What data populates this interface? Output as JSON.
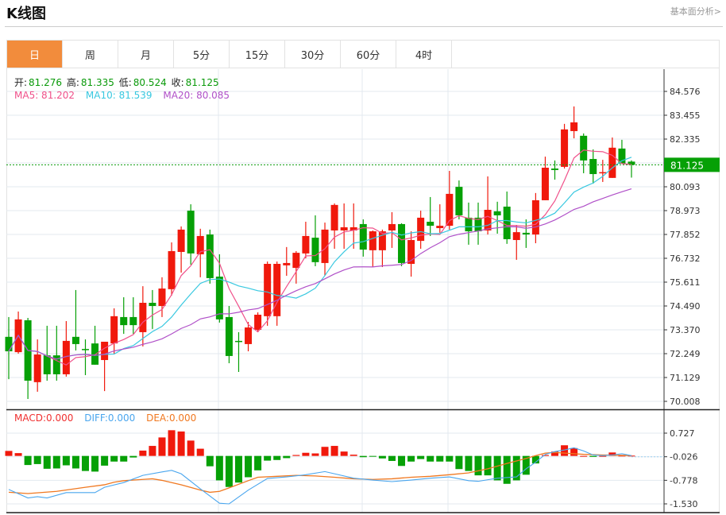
{
  "header": {
    "title": "K线图",
    "more_link": "基本面分析>"
  },
  "tabs": [
    {
      "label": "日",
      "active": true
    },
    {
      "label": "周"
    },
    {
      "label": "月"
    },
    {
      "label": "5分"
    },
    {
      "label": "15分"
    },
    {
      "label": "30分"
    },
    {
      "label": "60分"
    },
    {
      "label": "4时"
    }
  ],
  "ohlc": {
    "open_label": "开:",
    "open": "81.276",
    "high_label": "高:",
    "high": "81.335",
    "low_label": "低:",
    "low": "80.524",
    "close_label": "收:",
    "close": "81.125"
  },
  "ma": {
    "ma5": "MA5: 81.202",
    "ma10": "MA10: 81.539",
    "ma20": "MA20: 80.085"
  },
  "macd_legend": {
    "macd": "MACD:0.000",
    "diff": "DIFF:0.000",
    "dea": "DEA:0.000"
  },
  "colors": {
    "up": "#f0190c",
    "down": "#06a006",
    "ma5": "#f0508a",
    "ma10": "#38c8e0",
    "ma20": "#b050c8",
    "macd": "#f03030",
    "diff": "#4aa6ee",
    "dea": "#f07820",
    "accent": "#f28c3c"
  },
  "chart_data": {
    "type": "candlestick",
    "current_price": "81.125",
    "price_ticks": [
      "84.576",
      "83.455",
      "82.335",
      "81.214",
      "80.093",
      "78.973",
      "77.852",
      "76.732",
      "75.611",
      "74.490",
      "73.370",
      "72.249",
      "71.129",
      "70.008"
    ],
    "ylim": [
      70.008,
      84.576
    ],
    "macd_ticks": [
      "0.727",
      "-0.026",
      "-0.778",
      "-1.530"
    ],
    "macd_ylim": [
      -1.53,
      0.727
    ],
    "candles_ochl": [
      [
        73.04,
        72.36,
        73.97,
        71.05
      ],
      [
        72.32,
        73.86,
        74.23,
        72.25
      ],
      [
        73.82,
        70.98,
        73.93,
        70.12
      ],
      [
        70.91,
        72.21,
        72.92,
        70.46
      ],
      [
        72.17,
        71.28,
        73.56,
        70.98
      ],
      [
        72.17,
        71.28,
        73.56,
        70.98
      ],
      [
        71.28,
        72.85,
        73.78,
        71.17
      ],
      [
        73.04,
        72.7,
        75.24,
        72.4
      ],
      [
        72.47,
        72.44,
        72.92,
        71.24
      ],
      [
        72.73,
        71.73,
        73.56,
        71.73
      ],
      [
        71.95,
        72.81,
        72.81,
        70.49
      ],
      [
        72.73,
        74.01,
        74.38,
        72.25
      ],
      [
        73.97,
        73.59,
        74.9,
        73.18
      ],
      [
        73.97,
        73.59,
        74.9,
        73.18
      ],
      [
        73.26,
        74.64,
        75.42,
        72.59
      ],
      [
        74.64,
        74.49,
        75.24,
        73.41
      ],
      [
        74.49,
        75.31,
        75.84,
        73.97
      ],
      [
        75.28,
        77.07,
        77.48,
        74.98
      ],
      [
        77.03,
        78.08,
        78.23,
        76.06
      ],
      [
        78.97,
        76.96,
        79.27,
        76.43
      ],
      [
        76.92,
        77.78,
        78.12,
        75.84
      ],
      [
        77.85,
        75.8,
        78.08,
        75.54
      ],
      [
        75.87,
        73.86,
        76.92,
        73.71
      ],
      [
        73.97,
        72.14,
        74.49,
        71.8
      ],
      [
        72.85,
        72.81,
        73.26,
        71.39
      ],
      [
        72.7,
        73.48,
        73.74,
        72.36
      ],
      [
        73.37,
        74.08,
        74.19,
        73.26
      ],
      [
        74.01,
        76.47,
        76.58,
        73.56
      ],
      [
        74.01,
        76.47,
        76.58,
        73.56
      ],
      [
        76.4,
        76.51,
        77.26,
        75.91
      ],
      [
        76.28,
        76.99,
        77.07,
        75.54
      ],
      [
        76.96,
        77.78,
        78.45,
        76.73
      ],
      [
        77.7,
        76.55,
        78.75,
        76.36
      ],
      [
        76.51,
        78.08,
        78.41,
        75.91
      ],
      [
        78.04,
        79.24,
        79.31,
        77.18
      ],
      [
        78.04,
        78.19,
        79.31,
        77.18
      ],
      [
        78.04,
        78.19,
        79.31,
        77.18
      ],
      [
        78.34,
        77.14,
        78.56,
        76.81
      ],
      [
        77.11,
        78.0,
        78.04,
        76.32
      ],
      [
        77.11,
        78.0,
        78.08,
        76.32
      ],
      [
        78.04,
        78.34,
        78.9,
        77.22
      ],
      [
        78.34,
        76.51,
        78.38,
        76.36
      ],
      [
        76.47,
        77.59,
        78.0,
        75.87
      ],
      [
        77.55,
        78.64,
        78.97,
        77.18
      ],
      [
        78.45,
        78.26,
        79.61,
        77.78
      ],
      [
        78.15,
        78.26,
        79.27,
        77.93
      ],
      [
        78.26,
        79.76,
        80.84,
        78.08
      ],
      [
        80.09,
        78.75,
        80.39,
        78.56
      ],
      [
        78.64,
        78.0,
        79.35,
        77.37
      ],
      [
        78.64,
        78.0,
        79.35,
        77.37
      ],
      [
        78.04,
        79.01,
        80.58,
        77.85
      ],
      [
        78.94,
        78.75,
        79.39,
        77.89
      ],
      [
        79.16,
        77.63,
        79.87,
        77.41
      ],
      [
        77.59,
        77.96,
        78.3,
        76.66
      ],
      [
        77.93,
        77.85,
        78.56,
        77.22
      ],
      [
        77.85,
        79.46,
        79.8,
        77.44
      ],
      [
        79.46,
        80.99,
        81.51,
        79.46
      ],
      [
        80.95,
        80.88,
        81.33,
        80.43
      ],
      [
        81.03,
        82.79,
        83.05,
        80.95
      ],
      [
        82.71,
        83.12,
        83.87,
        82.37
      ],
      [
        82.49,
        81.33,
        82.6,
        80.73
      ],
      [
        81.4,
        80.69,
        81.85,
        80.24
      ],
      [
        80.77,
        80.78,
        81.36,
        80.32
      ],
      [
        80.51,
        81.93,
        82.41,
        80.51
      ],
      [
        81.89,
        81.18,
        82.3,
        81.18
      ],
      [
        81.276,
        81.125,
        81.335,
        80.524
      ]
    ],
    "macd_hist": [
      0.16,
      0.09,
      -0.29,
      -0.26,
      -0.41,
      -0.4,
      -0.3,
      -0.4,
      -0.48,
      -0.5,
      -0.31,
      -0.18,
      -0.18,
      -0.05,
      0.17,
      0.32,
      0.59,
      0.82,
      0.78,
      0.49,
      0.23,
      -0.33,
      -0.78,
      -0.99,
      -0.85,
      -0.68,
      -0.46,
      -0.15,
      -0.13,
      -0.07,
      0.03,
      0.1,
      0.08,
      0.29,
      0.32,
      0.14,
      0.04,
      -0.04,
      -0.02,
      -0.08,
      -0.16,
      -0.32,
      -0.18,
      -0.1,
      -0.18,
      -0.18,
      -0.18,
      -0.42,
      -0.48,
      -0.62,
      -0.62,
      -0.78,
      -0.89,
      -0.78,
      -0.6,
      -0.24,
      0.03,
      0.14,
      0.34,
      0.25,
      0.0,
      -0.03,
      0.0,
      0.11,
      0.01,
      0.01
    ],
    "diff_points": [
      [
        0,
        -1.07
      ],
      [
        2,
        -1.34
      ],
      [
        3,
        -1.3
      ],
      [
        4,
        -1.34
      ],
      [
        6,
        -1.17
      ],
      [
        9,
        -1.17
      ],
      [
        10,
        -1.0
      ],
      [
        12,
        -0.85
      ],
      [
        14,
        -0.62
      ],
      [
        16,
        -0.51
      ],
      [
        17,
        -0.46
      ],
      [
        18,
        -0.57
      ],
      [
        20,
        -1.05
      ],
      [
        22,
        -1.51
      ],
      [
        23,
        -1.53
      ],
      [
        25,
        -1.09
      ],
      [
        27,
        -0.72
      ],
      [
        29,
        -0.67
      ],
      [
        31,
        -0.6
      ],
      [
        33,
        -0.5
      ],
      [
        34,
        -0.57
      ],
      [
        36,
        -0.71
      ],
      [
        38,
        -0.77
      ],
      [
        40,
        -0.82
      ],
      [
        42,
        -0.77
      ],
      [
        44,
        -0.71
      ],
      [
        46,
        -0.67
      ],
      [
        48,
        -0.79
      ],
      [
        49,
        -0.81
      ],
      [
        51,
        -0.71
      ],
      [
        53,
        -0.67
      ],
      [
        54,
        -0.41
      ],
      [
        55,
        -0.2
      ],
      [
        56,
        0.05
      ],
      [
        57,
        0.14
      ],
      [
        58,
        0.19
      ],
      [
        59,
        0.26
      ],
      [
        60,
        0.16
      ],
      [
        61,
        0.03
      ],
      [
        62,
        0.01
      ],
      [
        63,
        0.03
      ],
      [
        64,
        0.07
      ],
      [
        65,
        0.01
      ]
    ],
    "dea_points": [
      [
        0,
        -1.16
      ],
      [
        2,
        -1.2
      ],
      [
        5,
        -1.13
      ],
      [
        8,
        -1.0
      ],
      [
        10,
        -0.92
      ],
      [
        11,
        -0.84
      ],
      [
        12,
        -0.79
      ],
      [
        14,
        -0.75
      ],
      [
        15,
        -0.73
      ],
      [
        16,
        -0.78
      ],
      [
        18,
        -0.92
      ],
      [
        20,
        -1.09
      ],
      [
        21,
        -1.16
      ],
      [
        22,
        -1.13
      ],
      [
        23,
        -1.02
      ],
      [
        25,
        -0.79
      ],
      [
        26,
        -0.68
      ],
      [
        28,
        -0.65
      ],
      [
        30,
        -0.62
      ],
      [
        32,
        -0.64
      ],
      [
        34,
        -0.68
      ],
      [
        36,
        -0.73
      ],
      [
        38,
        -0.75
      ],
      [
        40,
        -0.73
      ],
      [
        42,
        -0.68
      ],
      [
        44,
        -0.65
      ],
      [
        46,
        -0.6
      ],
      [
        48,
        -0.54
      ],
      [
        50,
        -0.41
      ],
      [
        52,
        -0.24
      ],
      [
        54,
        -0.08
      ],
      [
        55,
        0.01
      ],
      [
        56,
        0.09
      ],
      [
        57,
        0.11
      ],
      [
        58,
        0.09
      ],
      [
        60,
        0.05
      ],
      [
        62,
        0.03
      ],
      [
        65,
        0.01
      ]
    ]
  }
}
